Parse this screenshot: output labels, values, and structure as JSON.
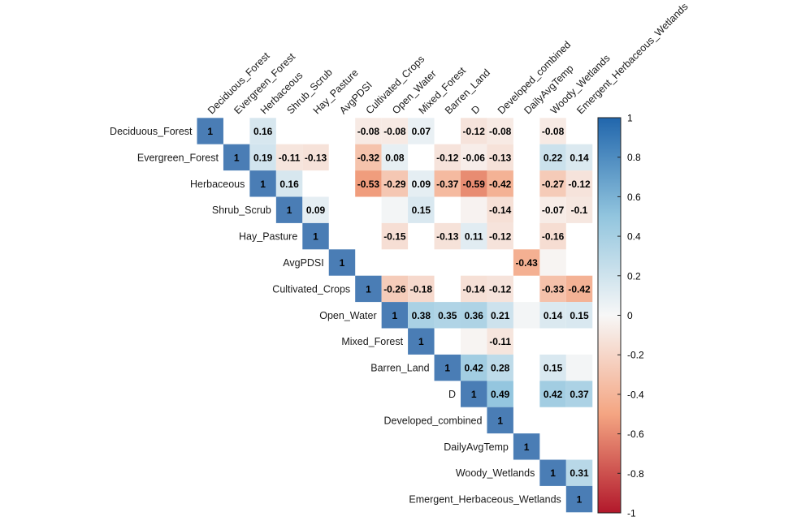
{
  "chart_data": {
    "type": "heatmap",
    "subtype": "correlation-upper-triangle",
    "variables": [
      "Deciduous_Forest",
      "Evergreen_Forest",
      "Herbaceous",
      "Shrub_Scrub",
      "Hay_Pasture",
      "AvgPDSI",
      "Cultivated_Crops",
      "Open_Water",
      "Mixed_Forest",
      "Barren_Land",
      "D",
      "Developed_combined",
      "DailyAvgTemp",
      "Woody_Wetlands",
      "Emergent_Herbaceous_Wetlands"
    ],
    "cells": [
      {
        "row": 0,
        "col": 0,
        "value": 1
      },
      {
        "row": 0,
        "col": 2,
        "value": 0.16
      },
      {
        "row": 0,
        "col": 6,
        "value": -0.08
      },
      {
        "row": 0,
        "col": 7,
        "value": -0.08
      },
      {
        "row": 0,
        "col": 8,
        "value": 0.07
      },
      {
        "row": 0,
        "col": 10,
        "value": -0.12
      },
      {
        "row": 0,
        "col": 11,
        "value": -0.08
      },
      {
        "row": 0,
        "col": 13,
        "value": -0.08
      },
      {
        "row": 1,
        "col": 1,
        "value": 1
      },
      {
        "row": 1,
        "col": 2,
        "value": 0.19
      },
      {
        "row": 1,
        "col": 3,
        "value": -0.11
      },
      {
        "row": 1,
        "col": 4,
        "value": -0.13
      },
      {
        "row": 1,
        "col": 6,
        "value": -0.32
      },
      {
        "row": 1,
        "col": 7,
        "value": 0.08
      },
      {
        "row": 1,
        "col": 9,
        "value": -0.12
      },
      {
        "row": 1,
        "col": 10,
        "value": -0.06
      },
      {
        "row": 1,
        "col": 11,
        "value": -0.13
      },
      {
        "row": 1,
        "col": 13,
        "value": 0.22
      },
      {
        "row": 1,
        "col": 14,
        "value": 0.14
      },
      {
        "row": 2,
        "col": 2,
        "value": 1
      },
      {
        "row": 2,
        "col": 3,
        "value": 0.16
      },
      {
        "row": 2,
        "col": 6,
        "value": -0.53
      },
      {
        "row": 2,
        "col": 7,
        "value": -0.29
      },
      {
        "row": 2,
        "col": 8,
        "value": 0.09
      },
      {
        "row": 2,
        "col": 9,
        "value": -0.37
      },
      {
        "row": 2,
        "col": 10,
        "value": -0.59
      },
      {
        "row": 2,
        "col": 11,
        "value": -0.42
      },
      {
        "row": 2,
        "col": 13,
        "value": -0.27
      },
      {
        "row": 2,
        "col": 14,
        "value": -0.12
      },
      {
        "row": 3,
        "col": 3,
        "value": 1
      },
      {
        "row": 3,
        "col": 4,
        "value": 0.09
      },
      {
        "row": 3,
        "col": 8,
        "value": 0.15
      },
      {
        "row": 3,
        "col": 11,
        "value": -0.14
      },
      {
        "row": 3,
        "col": 13,
        "value": -0.07
      },
      {
        "row": 3,
        "col": 14,
        "value": -0.1
      },
      {
        "row": 4,
        "col": 4,
        "value": 1
      },
      {
        "row": 4,
        "col": 7,
        "value": -0.15
      },
      {
        "row": 4,
        "col": 9,
        "value": -0.13
      },
      {
        "row": 4,
        "col": 10,
        "value": 0.11
      },
      {
        "row": 4,
        "col": 11,
        "value": -0.12
      },
      {
        "row": 4,
        "col": 13,
        "value": -0.16
      },
      {
        "row": 5,
        "col": 5,
        "value": 1
      },
      {
        "row": 5,
        "col": 12,
        "value": -0.43
      },
      {
        "row": 6,
        "col": 6,
        "value": 1
      },
      {
        "row": 6,
        "col": 7,
        "value": -0.26
      },
      {
        "row": 6,
        "col": 8,
        "value": -0.18
      },
      {
        "row": 6,
        "col": 10,
        "value": -0.14
      },
      {
        "row": 6,
        "col": 11,
        "value": -0.12
      },
      {
        "row": 6,
        "col": 13,
        "value": -0.33
      },
      {
        "row": 6,
        "col": 14,
        "value": -0.42
      },
      {
        "row": 7,
        "col": 7,
        "value": 1
      },
      {
        "row": 7,
        "col": 8,
        "value": 0.38
      },
      {
        "row": 7,
        "col": 9,
        "value": 0.35
      },
      {
        "row": 7,
        "col": 10,
        "value": 0.36
      },
      {
        "row": 7,
        "col": 11,
        "value": 0.21
      },
      {
        "row": 7,
        "col": 13,
        "value": 0.14
      },
      {
        "row": 7,
        "col": 14,
        "value": 0.15
      },
      {
        "row": 8,
        "col": 8,
        "value": 1
      },
      {
        "row": 8,
        "col": 11,
        "value": -0.11
      },
      {
        "row": 9,
        "col": 9,
        "value": 1
      },
      {
        "row": 9,
        "col": 10,
        "value": 0.42
      },
      {
        "row": 9,
        "col": 11,
        "value": 0.28
      },
      {
        "row": 9,
        "col": 13,
        "value": 0.15
      },
      {
        "row": 10,
        "col": 10,
        "value": 1
      },
      {
        "row": 10,
        "col": 11,
        "value": 0.49
      },
      {
        "row": 10,
        "col": 13,
        "value": 0.42
      },
      {
        "row": 10,
        "col": 14,
        "value": 0.37
      },
      {
        "row": 11,
        "col": 11,
        "value": 1
      },
      {
        "row": 12,
        "col": 12,
        "value": 1
      },
      {
        "row": 13,
        "col": 13,
        "value": 1
      },
      {
        "row": 13,
        "col": 14,
        "value": 0.31
      },
      {
        "row": 14,
        "col": 14,
        "value": 1
      }
    ],
    "faint_cells": [
      {
        "row": 3,
        "col": 7,
        "value": 0.02
      },
      {
        "row": 3,
        "col": 10,
        "value": -0.03
      },
      {
        "row": 5,
        "col": 13,
        "value": -0.02
      },
      {
        "row": 7,
        "col": 12,
        "value": 0.02
      },
      {
        "row": 8,
        "col": 10,
        "value": -0.02
      },
      {
        "row": 9,
        "col": 14,
        "value": 0.02
      }
    ],
    "colorbar": {
      "ticks": [
        "1",
        "0.8",
        "0.6",
        "0.4",
        "0.2",
        "0",
        "-0.2",
        "-0.4",
        "-0.6",
        "-0.8",
        "-1"
      ],
      "range": [
        -1,
        1
      ],
      "colors": {
        "negative_end": "#B2182B",
        "mid": "#F7F7F7",
        "positive_end": "#2166AC"
      }
    },
    "colors": {
      "neg": [
        178,
        24,
        43
      ],
      "negmid": [
        244,
        165,
        130
      ],
      "mid": [
        247,
        247,
        247
      ],
      "posmid": [
        146,
        197,
        222
      ],
      "pos": [
        33,
        102,
        172
      ],
      "diagonal": "#4A7DB5"
    },
    "legend_position": "right"
  }
}
